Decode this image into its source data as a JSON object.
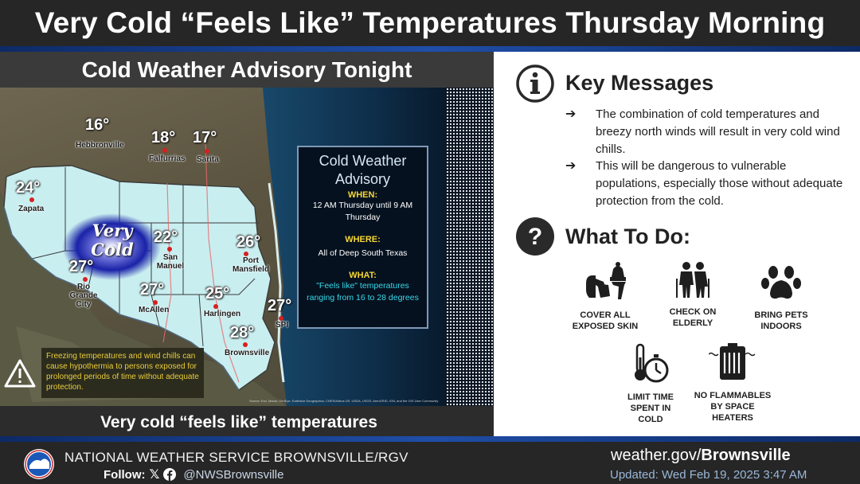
{
  "title": "Very Cold “Feels Like” Temperatures Thursday Morning",
  "map_panel": {
    "header": "Cold Weather Advisory Tonight",
    "footer": "Very cold “feels like” temperatures",
    "very_cold_label": "Very Cold",
    "cities": [
      {
        "name": "Hebbronville",
        "temp": "16°"
      },
      {
        "name": "Falfurrias",
        "temp": "18°"
      },
      {
        "name": "Sarita",
        "temp": "17°"
      },
      {
        "name": "Zapata",
        "temp": "24°"
      },
      {
        "name": "San Manuel",
        "temp": "22°"
      },
      {
        "name": "Port Mansfield",
        "temp": "26°"
      },
      {
        "name": "Rio Grande City",
        "temp": "27°"
      },
      {
        "name": "McAllen",
        "temp": "27°"
      },
      {
        "name": "Harlingen",
        "temp": "25°"
      },
      {
        "name": "SPI",
        "temp": "27°"
      },
      {
        "name": "Brownsville",
        "temp": "28°"
      }
    ],
    "advisory_box": {
      "title": "Cold Weather Advisory",
      "when_label": "WHEN:",
      "when_text": "12 AM Thursday until 9 AM Thursday",
      "where_label": "WHERE:",
      "where_text": "All of Deep South Texas",
      "what_label": "WHAT:",
      "what_text": "\"Feels like\" temperatures ranging from 16 to 28 degrees"
    },
    "warning_text": "Freezing temperatures and wind chills can cause hypothermia to persons exposed for prolonged periods of time without adequate protection.",
    "credit": "Source: Esri, Maxar, GeoEye, Earthstar Geographics, CNES/Airbus DS, USDA, USGS, AeroGRID, IGN, and the GIS User Community"
  },
  "key_messages": {
    "heading": "Key Messages",
    "bullets": [
      "The combination of cold temperatures and breezy north winds will result in very cold wind chills.",
      "This will be dangerous to vulnerable populations, especially those without adequate protection from the cold."
    ],
    "arrow": "➔"
  },
  "what_to_do": {
    "heading": "What To Do:",
    "actions": [
      {
        "label": "COVER ALL\nEXPOSED SKIN",
        "icon": "winter-clothing-icon"
      },
      {
        "label": "CHECK ON\nELDERLY",
        "icon": "elderly-icon"
      },
      {
        "label": "BRING PETS\nINDOORS",
        "icon": "paw-icon"
      },
      {
        "label": "LIMIT TIME\nSPENT IN\nCOLD",
        "icon": "thermometer-stopwatch-icon"
      },
      {
        "label": "NO FLAMMABLES\nBY SPACE\nHEATERS",
        "icon": "space-heater-icon"
      }
    ]
  },
  "footer": {
    "agency": "NATIONAL WEATHER SERVICE BROWNSVILLE/RGV",
    "follow_label": "Follow:",
    "handle": "@NWSBrownsville",
    "site_prefix": "weather.gov/",
    "site_bold": "Brownsville",
    "updated": "Updated: Wed Feb 19, 2025 3:47 AM"
  },
  "colors": {
    "advisory_area": "#c9eef0",
    "very_cold_blob": "#1a22a8",
    "banner_stripe": "#1f4ea8",
    "city_dot": "#d81f1f",
    "advisory_yellow": "#f6d733",
    "advisory_cyan": "#38d9e8"
  }
}
